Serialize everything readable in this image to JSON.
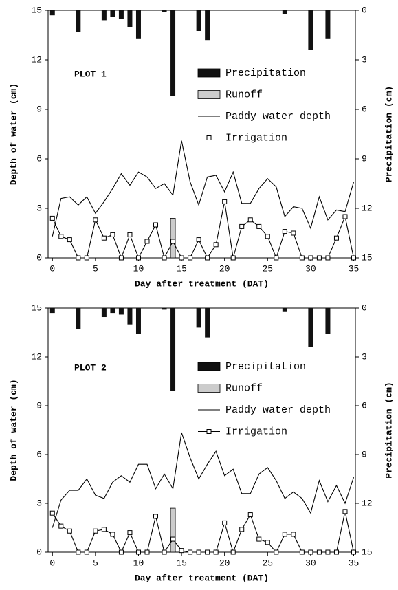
{
  "chart_data": [
    {
      "type": "combo",
      "title": "PLOT 1",
      "xlabel": "Day after treatment (DAT)",
      "ylabel": "Depth of water (cm)",
      "y2label": "Precipitation (cm)",
      "x": [
        0,
        1,
        2,
        3,
        4,
        5,
        6,
        7,
        8,
        9,
        10,
        11,
        12,
        13,
        14,
        15,
        16,
        17,
        18,
        19,
        20,
        21,
        22,
        23,
        24,
        25,
        26,
        27,
        28,
        29,
        30,
        31,
        32,
        33,
        34,
        35
      ],
      "xlim": [
        -0.5,
        35.2
      ],
      "xticks": [
        0,
        5,
        10,
        15,
        20,
        25,
        30,
        35
      ],
      "ylim": [
        0,
        15
      ],
      "yticks": [
        0,
        3,
        6,
        9,
        12,
        15
      ],
      "y2lim": [
        15,
        0
      ],
      "y2ticks": [
        0,
        3,
        6,
        9,
        12,
        15
      ],
      "series": [
        {
          "name": "Precipitation",
          "kind": "bar",
          "axis": "y2",
          "color": "#111111",
          "values": [
            0.3,
            0,
            0,
            1.3,
            0,
            0,
            0.6,
            0.4,
            0.5,
            1.0,
            1.7,
            0,
            0,
            0.1,
            5.2,
            0,
            0,
            1.25,
            1.8,
            0,
            0,
            0,
            0,
            0,
            0,
            0,
            0,
            0.25,
            0,
            0,
            2.4,
            0,
            1.7,
            0,
            0,
            0
          ]
        },
        {
          "name": "Runoff",
          "kind": "bar",
          "color": "#cccccc",
          "values": [
            0,
            0,
            0,
            0,
            0,
            0,
            0,
            0,
            0,
            0,
            0,
            0,
            0,
            0,
            2.4,
            0,
            0,
            0,
            0,
            0,
            0,
            0,
            0,
            0,
            0,
            0,
            0,
            0,
            0,
            0,
            0,
            0,
            0,
            0,
            0,
            0
          ]
        },
        {
          "name": "Paddy water depth",
          "kind": "line",
          "color": "#000000",
          "values": [
            1.3,
            3.6,
            3.7,
            3.2,
            3.7,
            2.7,
            3.4,
            4.2,
            5.1,
            4.4,
            5.2,
            4.9,
            4.2,
            4.5,
            3.8,
            7.1,
            4.6,
            3.2,
            4.9,
            5.0,
            4.0,
            5.2,
            3.3,
            3.3,
            4.2,
            4.8,
            4.3,
            2.5,
            3.1,
            3.0,
            1.8,
            3.7,
            2.3,
            2.9,
            2.8,
            4.6
          ]
        },
        {
          "name": "Irrigation",
          "kind": "line-marker",
          "color": "#000000",
          "values": [
            2.4,
            1.3,
            1.1,
            0,
            0,
            2.3,
            1.2,
            1.4,
            0,
            1.4,
            0,
            1.0,
            2.0,
            0,
            1.0,
            0,
            0,
            1.1,
            0,
            0.8,
            3.4,
            0,
            1.9,
            2.3,
            1.9,
            1.3,
            0,
            1.6,
            1.5,
            0,
            0,
            0,
            0,
            1.2,
            2.5,
            0
          ]
        }
      ]
    },
    {
      "type": "combo",
      "title": "PLOT 2",
      "xlabel": "Day after treatment (DAT)",
      "ylabel": "Depth of water (cm)",
      "y2label": "Precipitation (cm)",
      "x": [
        0,
        1,
        2,
        3,
        4,
        5,
        6,
        7,
        8,
        9,
        10,
        11,
        12,
        13,
        14,
        15,
        16,
        17,
        18,
        19,
        20,
        21,
        22,
        23,
        24,
        25,
        26,
        27,
        28,
        29,
        30,
        31,
        32,
        33,
        34,
        35
      ],
      "xlim": [
        -0.5,
        35.2
      ],
      "xticks": [
        0,
        5,
        10,
        15,
        20,
        25,
        30,
        35
      ],
      "ylim": [
        0,
        15
      ],
      "yticks": [
        0,
        3,
        6,
        9,
        12,
        15
      ],
      "y2lim": [
        15,
        0
      ],
      "y2ticks": [
        0,
        3,
        6,
        9,
        12,
        15
      ],
      "series": [
        {
          "name": "Precipitation",
          "kind": "bar",
          "axis": "y2",
          "color": "#111111",
          "values": [
            0.3,
            0,
            0,
            1.3,
            0,
            0,
            0.55,
            0.3,
            0.4,
            1.0,
            1.6,
            0,
            0,
            0.1,
            5.1,
            0,
            0,
            1.2,
            1.8,
            0,
            0,
            0,
            0,
            0,
            0,
            0,
            0,
            0.2,
            0,
            0,
            2.4,
            0,
            1.6,
            0,
            0,
            0
          ]
        },
        {
          "name": "Runoff",
          "kind": "bar",
          "color": "#cccccc",
          "values": [
            0,
            0,
            0,
            0,
            0,
            0,
            0,
            0,
            0,
            0,
            0,
            0,
            0,
            0,
            2.7,
            0,
            0,
            0,
            0,
            0,
            0,
            0,
            0,
            0,
            0,
            0,
            0,
            0,
            0,
            0,
            0,
            0,
            0,
            0,
            0,
            0
          ]
        },
        {
          "name": "Paddy water depth",
          "kind": "line",
          "color": "#000000",
          "values": [
            1.5,
            3.2,
            3.8,
            3.8,
            4.5,
            3.5,
            3.3,
            4.3,
            4.7,
            4.3,
            5.4,
            5.4,
            3.9,
            4.8,
            3.9,
            7.35,
            5.8,
            4.5,
            5.4,
            6.2,
            4.7,
            5.1,
            3.6,
            3.6,
            4.8,
            5.2,
            4.4,
            3.3,
            3.7,
            3.3,
            2.4,
            4.4,
            3.1,
            4.1,
            3.0,
            4.6
          ]
        },
        {
          "name": "Irrigation",
          "kind": "line-marker",
          "color": "#000000",
          "values": [
            2.4,
            1.6,
            1.3,
            0,
            0,
            1.3,
            1.4,
            1.1,
            0,
            1.2,
            0,
            0,
            2.2,
            0,
            0.8,
            0.1,
            0,
            0,
            0,
            0,
            1.8,
            0,
            1.4,
            2.3,
            0.8,
            0.6,
            0,
            1.1,
            1.1,
            0,
            0,
            0,
            0,
            0,
            2.5,
            0
          ]
        }
      ]
    }
  ]
}
